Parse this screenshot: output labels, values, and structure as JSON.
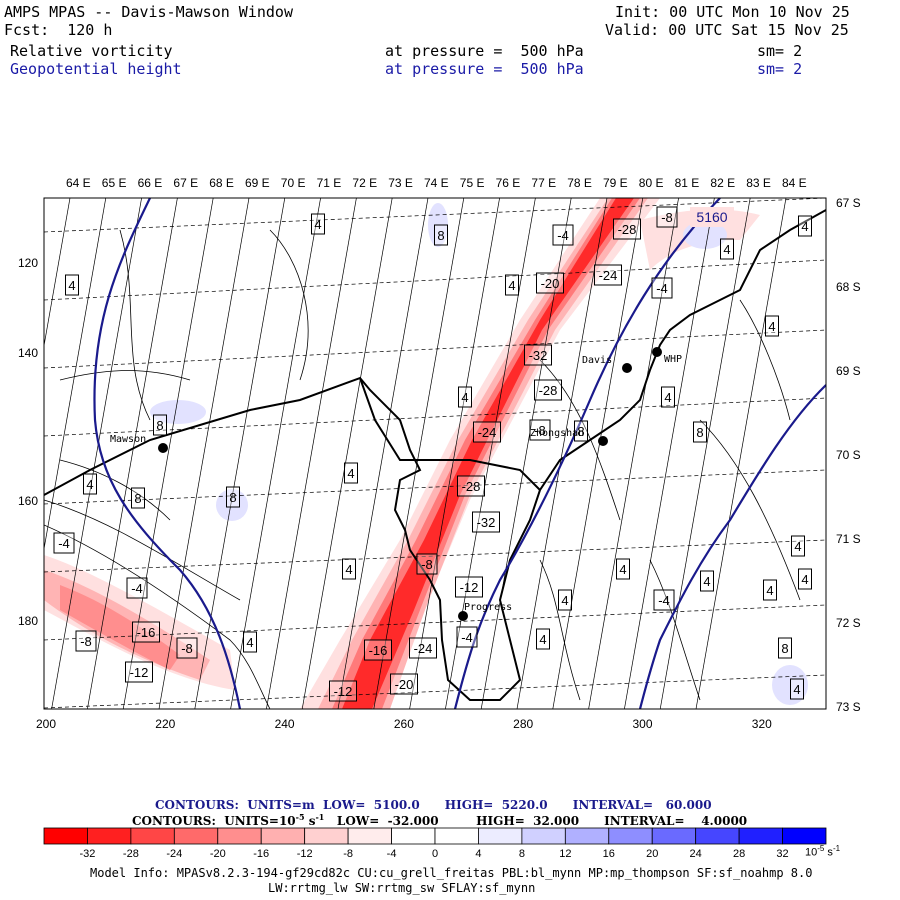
{
  "header": {
    "model_title": "AMPS MPAS -- Davis-Mawson Window",
    "forecast": "Fcst:  120 h",
    "init": "Init: 00 UTC Mon 10 Nov 25",
    "valid": "Valid: 00 UTC Sat 15 Nov 25",
    "field1": {
      "name": "Relative vorticity",
      "level": "at pressure =  500 hPa",
      "smoothing": "sm= 2"
    },
    "field2": {
      "name": "Geopotential height",
      "level": "at pressure =  500 hPa",
      "smoothing": "sm= 2"
    }
  },
  "map": {
    "top_longitudes": [
      "64 E",
      "65 E",
      "66 E",
      "67 E",
      "68 E",
      "69 E",
      "70 E",
      "71 E",
      "72 E",
      "73 E",
      "74 E",
      "75 E",
      "76 E",
      "77 E",
      "78 E",
      "79 E",
      "80 E",
      "81 E",
      "82 E",
      "83 E",
      "84 E"
    ],
    "right_latitudes": [
      "67 S",
      "68 S",
      "69 S",
      "70 S",
      "71 S",
      "72 S",
      "73 S"
    ],
    "bottom_ticks": [
      "200",
      "220",
      "240",
      "260",
      "280",
      "300",
      "320"
    ],
    "left_ticks": [
      "120",
      "140",
      "160",
      "180"
    ],
    "stations": [
      {
        "name": "Mawson"
      },
      {
        "name": "Davis"
      },
      {
        "name": "WHP"
      },
      {
        "name": "Progress"
      },
      {
        "name": "Zhongshan"
      }
    ],
    "height_labels": [
      "5160"
    ],
    "vorticity_labels": [
      "4",
      "8",
      "-4",
      "-8",
      "-12",
      "-16",
      "-20",
      "-24",
      "-28",
      "-32"
    ],
    "colors": {
      "coast": "#000000",
      "height_contour": "#1a1a8c",
      "neg_max": "#ff0000",
      "pos_max": "#0000ff"
    }
  },
  "legend": {
    "line1_prefix": "CONTOURS:  UNITS=m  LOW=  5100.0      HIGH=  5220.0      INTERVAL=   60.000",
    "line2_prefix": "CONTOURS:  UNITS=10",
    "line2_exp": "-5",
    "line2_unit": " s",
    "line2_exp2": "-1",
    "line2_rest": "   LOW=  -32.000         HIGH=  32.000      INTERVAL=    4.0000",
    "colorbar_colors": [
      "#ff0000",
      "#ff2020",
      "#ff4646",
      "#ff6a6a",
      "#ff8e8e",
      "#ffb0b0",
      "#ffd0d0",
      "#ffecec",
      "#ffffff",
      "#ffffff",
      "#ececff",
      "#d0d0ff",
      "#b0b0ff",
      "#8e8eff",
      "#6a6aff",
      "#4646ff",
      "#2020ff",
      "#0000ff"
    ],
    "colorbar_labels": [
      "-32",
      "-28",
      "-24",
      "-20",
      "-16",
      "-12",
      "-8",
      "-4",
      "0",
      "4",
      "8",
      "12",
      "16",
      "20",
      "24",
      "28",
      "32"
    ],
    "colorbar_unit": "10",
    "colorbar_unit_exp": "-5",
    "colorbar_unit_s": " s",
    "colorbar_unit_exp2": "-1"
  },
  "model_info": {
    "line1": "Model Info: MPASv8.2.3-194-gf29cd82c CU:cu_grell_freitas PBL:bl_mynn MP:mp_thompson SF:sf_noahmp 8.0",
    "line2": "LW:rrtmg_lw SW:rrtmg_sw SFLAY:sf_mynn"
  }
}
